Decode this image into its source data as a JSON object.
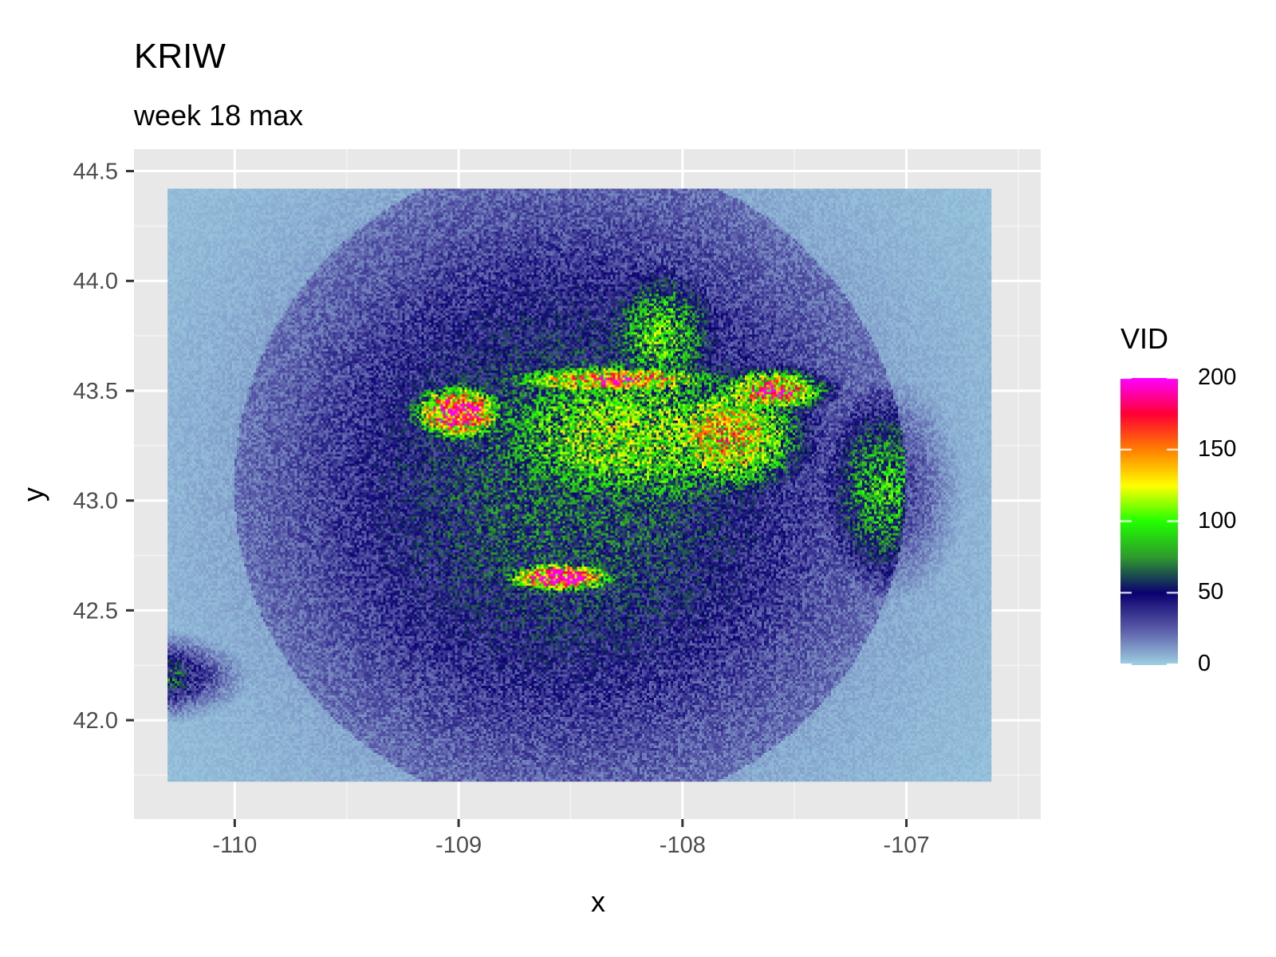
{
  "chart_data": {
    "type": "heatmap",
    "title": "KRIW",
    "subtitle": "week 18 max",
    "xlabel": "x",
    "ylabel": "y",
    "xlim": [
      -110.45,
      -106.4
    ],
    "ylim": [
      41.55,
      44.6
    ],
    "x_ticks": [
      {
        "value": -110,
        "label": "-110"
      },
      {
        "value": -109,
        "label": "-109"
      },
      {
        "value": -108,
        "label": "-108"
      },
      {
        "value": -107,
        "label": "-107"
      }
    ],
    "y_ticks": [
      {
        "value": 42.0,
        "label": "42.0"
      },
      {
        "value": 42.5,
        "label": "42.5"
      },
      {
        "value": 43.0,
        "label": "43.0"
      },
      {
        "value": 43.5,
        "label": "43.5"
      },
      {
        "value": 44.0,
        "label": "44.0"
      },
      {
        "value": 44.5,
        "label": "44.5"
      }
    ],
    "raster_extent": {
      "x": [
        -110.3,
        -106.62
      ],
      "y": [
        41.72,
        44.42
      ]
    },
    "radar_center": {
      "x": -108.5,
      "y": 43.07
    },
    "legend": {
      "title": "VID",
      "position": "right",
      "range": [
        0,
        200
      ],
      "ticks": [
        {
          "value": 0,
          "label": "0"
        },
        {
          "value": 50,
          "label": "50"
        },
        {
          "value": 100,
          "label": "100"
        },
        {
          "value": 150,
          "label": "150"
        },
        {
          "value": 200,
          "label": "200"
        }
      ],
      "colorscale": [
        {
          "value": 0,
          "color": "#9ed0e2"
        },
        {
          "value": 25,
          "color": "#5a5aa8"
        },
        {
          "value": 50,
          "color": "#0a0070"
        },
        {
          "value": 75,
          "color": "#2e9a2e"
        },
        {
          "value": 100,
          "color": "#22ff00"
        },
        {
          "value": 125,
          "color": "#ffff00"
        },
        {
          "value": 150,
          "color": "#ff8000"
        },
        {
          "value": 175,
          "color": "#ff0033"
        },
        {
          "value": 200,
          "color": "#ff00ff"
        }
      ]
    },
    "high_value_regions": [
      {
        "x": -108.25,
        "y": 43.3,
        "rx": 1.05,
        "ry": 0.55,
        "value": 100
      },
      {
        "x": -107.8,
        "y": 43.3,
        "rx": 0.45,
        "ry": 0.35,
        "value": 130
      },
      {
        "x": -107.6,
        "y": 43.5,
        "rx": 0.3,
        "ry": 0.12,
        "value": 160
      },
      {
        "x": -108.1,
        "y": 43.75,
        "rx": 0.35,
        "ry": 0.4,
        "value": 90
      },
      {
        "x": -107.1,
        "y": 43.05,
        "rx": 0.35,
        "ry": 0.55,
        "value": 80
      },
      {
        "x": -109.0,
        "y": 43.4,
        "rx": 0.25,
        "ry": 0.15,
        "value": 190
      },
      {
        "x": -108.55,
        "y": 42.65,
        "rx": 0.3,
        "ry": 0.08,
        "value": 190
      },
      {
        "x": -110.4,
        "y": 42.2,
        "rx": 0.4,
        "ry": 0.18,
        "value": 150
      },
      {
        "x": -108.3,
        "y": 43.55,
        "rx": 0.6,
        "ry": 0.08,
        "value": 160
      }
    ],
    "grid": true
  }
}
